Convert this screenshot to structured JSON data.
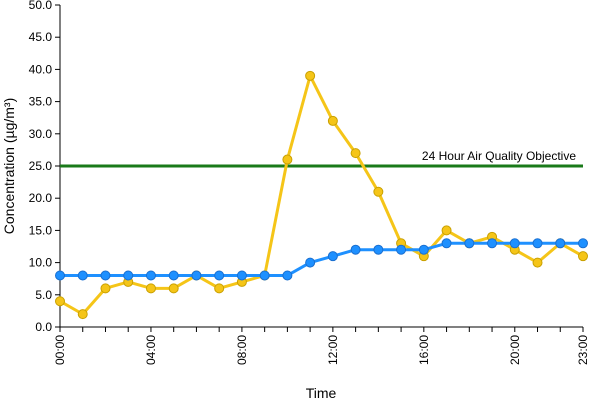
{
  "chart_data": {
    "type": "line",
    "title": "",
    "xlabel": "Time",
    "ylabel": "Concentration (µg/m³)",
    "ylim": [
      0,
      50
    ],
    "y_ticks": [
      "0.0",
      "5.0",
      "10.0",
      "15.0",
      "20.0",
      "25.0",
      "30.0",
      "35.0",
      "40.0",
      "45.0",
      "50.0"
    ],
    "x": [
      "00:00",
      "01:00",
      "02:00",
      "03:00",
      "04:00",
      "05:00",
      "06:00",
      "07:00",
      "08:00",
      "09:00",
      "10:00",
      "11:00",
      "12:00",
      "13:00",
      "14:00",
      "15:00",
      "16:00",
      "17:00",
      "18:00",
      "19:00",
      "20:00",
      "21:00",
      "22:00",
      "23:00"
    ],
    "x_tick_labels": [
      "00:00",
      "04:00",
      "08:00",
      "12:00",
      "16:00",
      "20:00",
      "23:00"
    ],
    "grid": false,
    "series": [
      {
        "color": "#f5c518",
        "values": [
          4,
          2,
          6,
          7,
          6,
          6,
          8,
          6,
          7,
          8,
          26,
          39,
          32,
          27,
          21,
          13,
          11,
          15,
          13,
          14,
          12,
          10,
          13,
          11
        ]
      },
      {
        "color": "#1e90ff",
        "values": [
          8,
          8,
          8,
          8,
          8,
          8,
          8,
          8,
          8,
          8,
          8,
          10,
          11,
          12,
          12,
          12,
          12,
          13,
          13,
          13,
          13,
          13,
          13,
          13
        ]
      }
    ],
    "reference_line": {
      "label": "24 Hour Air Quality Objective",
      "value": 25,
      "color": "#1a7a1a"
    }
  }
}
